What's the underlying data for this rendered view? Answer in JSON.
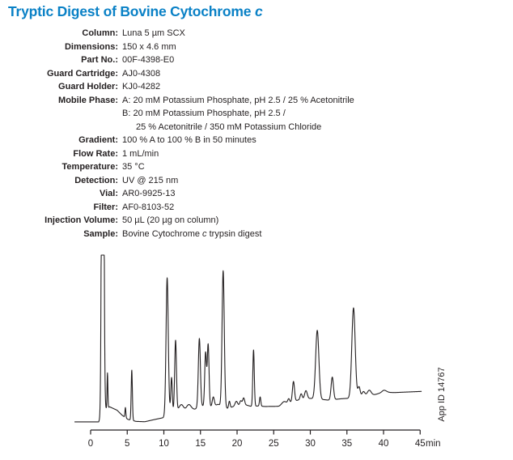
{
  "title": {
    "segs": [
      {
        "t": "Tryptic Digest of Bovine Cytochrome "
      },
      {
        "t": "c",
        "i": true
      }
    ],
    "color": "#0a81c6"
  },
  "method": {
    "rows": [
      {
        "label": "Column:",
        "lines": [
          {
            "segs": [
              {
                "t": "Luna 5 µm SCX"
              }
            ]
          }
        ]
      },
      {
        "label": "Dimensions:",
        "lines": [
          {
            "segs": [
              {
                "t": "150 x 4.6 mm"
              }
            ]
          }
        ]
      },
      {
        "label": "Part No.:",
        "lines": [
          {
            "segs": [
              {
                "t": "00F-4398-E0"
              }
            ]
          }
        ]
      },
      {
        "label": "Guard Cartridge:",
        "lines": [
          {
            "segs": [
              {
                "t": "AJ0-4308"
              }
            ]
          }
        ]
      },
      {
        "label": "Guard Holder:",
        "lines": [
          {
            "segs": [
              {
                "t": "KJ0-4282"
              }
            ]
          }
        ]
      },
      {
        "label": "Mobile Phase:",
        "lines": [
          {
            "segs": [
              {
                "t": "A: 20 mM Potassium Phosphate, pH 2.5 / 25 % Acetonitrile"
              }
            ]
          },
          {
            "segs": [
              {
                "t": "B: 20 mM Potassium Phosphate, pH 2.5 /"
              }
            ]
          },
          {
            "indent": true,
            "segs": [
              {
                "t": "25 % Acetonitrile / 350 mM Potassium Chloride"
              }
            ]
          }
        ]
      },
      {
        "label": "Gradient:",
        "lines": [
          {
            "segs": [
              {
                "t": "100 % A to 100 % B in 50 minutes"
              }
            ]
          }
        ]
      },
      {
        "label": "Flow Rate:",
        "lines": [
          {
            "segs": [
              {
                "t": "1 mL/min"
              }
            ]
          }
        ]
      },
      {
        "label": "Temperature:",
        "lines": [
          {
            "segs": [
              {
                "t": "35 °C"
              }
            ]
          }
        ]
      },
      {
        "label": "Detection:",
        "lines": [
          {
            "segs": [
              {
                "t": "UV @ 215 nm"
              }
            ]
          }
        ]
      },
      {
        "label": "Vial:",
        "lines": [
          {
            "segs": [
              {
                "t": "AR0-9925-13"
              }
            ]
          }
        ]
      },
      {
        "label": "Filter:",
        "lines": [
          {
            "segs": [
              {
                "t": "AF0-8103-52"
              }
            ]
          }
        ]
      },
      {
        "label": "Injection Volume:",
        "lines": [
          {
            "segs": [
              {
                "t": "50 µL (20 µg on column)"
              }
            ]
          }
        ]
      },
      {
        "label": "Sample:",
        "lines": [
          {
            "segs": [
              {
                "t": "Bovine Cytochrome "
              },
              {
                "t": "c",
                "i": true
              },
              {
                "t": " trypsin digest"
              }
            ]
          }
        ]
      }
    ]
  },
  "chart_data": {
    "type": "line",
    "description": "Cation-exchange HPLC chromatogram of a bovine cytochrome c tryptic digest; UV detector response (unlabeled y-axis, relative units 0-100) vs retention time in minutes.",
    "xlabel": "min",
    "x_ticks": [
      0,
      5,
      10,
      15,
      20,
      25,
      30,
      35,
      40,
      45
    ],
    "x_range": [
      0,
      45
    ],
    "trace_start_min": -2.2,
    "trace_end_min": 45.2,
    "clip_level": 100,
    "solvent_front": {
      "rt_min": 1.65,
      "clipped_offscale": true
    },
    "peaks_rt_height_sigma": [
      [
        1.65,
        400,
        0.13
      ],
      [
        2.3,
        21,
        0.055
      ],
      [
        4.75,
        6,
        0.06
      ],
      [
        5.62,
        30,
        0.08
      ],
      [
        10.45,
        81,
        0.15
      ],
      [
        11.05,
        20,
        0.1
      ],
      [
        11.6,
        42,
        0.12
      ],
      [
        12.4,
        3.5,
        0.28
      ],
      [
        13.4,
        3.5,
        0.32
      ],
      [
        14.85,
        41,
        0.14
      ],
      [
        15.7,
        32,
        0.12
      ],
      [
        16.05,
        37,
        0.12
      ],
      [
        16.75,
        5.5,
        0.14
      ],
      [
        18.1,
        81,
        0.15
      ],
      [
        18.95,
        4,
        0.1
      ],
      [
        19.9,
        3,
        0.18
      ],
      [
        20.5,
        3,
        0.14
      ],
      [
        20.9,
        4.5,
        0.14
      ],
      [
        22.25,
        33.5,
        0.1
      ],
      [
        23.15,
        5.5,
        0.09
      ],
      [
        26.4,
        1.8,
        0.3
      ],
      [
        27.05,
        2.5,
        0.13
      ],
      [
        27.7,
        12,
        0.14
      ],
      [
        28.75,
        3.5,
        0.14
      ],
      [
        29.4,
        5,
        0.18
      ],
      [
        30.95,
        41,
        0.22
      ],
      [
        33.0,
        13.5,
        0.16
      ],
      [
        35.9,
        54,
        0.23
      ],
      [
        36.65,
        6.5,
        0.16
      ],
      [
        37.25,
        3,
        0.2
      ],
      [
        38.05,
        3,
        0.25
      ],
      [
        40.1,
        1.2,
        0.3
      ]
    ],
    "baseline_nodes": [
      [
        -2.2,
        0.5
      ],
      [
        1.1,
        0.5
      ],
      [
        2.0,
        8
      ],
      [
        2.6,
        9.5
      ],
      [
        3.6,
        7.5
      ],
      [
        4.3,
        4.5
      ],
      [
        5.1,
        2
      ],
      [
        6.2,
        0.8
      ],
      [
        7.4,
        0.6
      ],
      [
        8.6,
        1.8
      ],
      [
        9.9,
        3
      ],
      [
        10.8,
        7
      ],
      [
        11.4,
        7
      ],
      [
        12.0,
        7.5
      ],
      [
        13.0,
        7
      ],
      [
        14.2,
        8
      ],
      [
        15.2,
        10
      ],
      [
        16.5,
        9.5
      ],
      [
        17.4,
        11
      ],
      [
        18.7,
        8.5
      ],
      [
        19.4,
        9.5
      ],
      [
        21.3,
        10.5
      ],
      [
        21.9,
        9.8
      ],
      [
        22.9,
        10
      ],
      [
        23.8,
        9.7
      ],
      [
        25.7,
        9.8
      ],
      [
        26.9,
        11.5
      ],
      [
        28.3,
        13.5
      ],
      [
        30.0,
        14.5
      ],
      [
        31.8,
        13.8
      ],
      [
        32.5,
        13.5
      ],
      [
        34.2,
        14.3
      ],
      [
        34.9,
        14.5
      ],
      [
        36.4,
        14.5
      ],
      [
        37.8,
        16.3
      ],
      [
        38.8,
        16.8
      ],
      [
        40.0,
        18.2
      ],
      [
        41.5,
        18.0
      ],
      [
        45.2,
        18.7
      ]
    ],
    "line_color": "#231f20",
    "annotation": "App ID 14767"
  }
}
